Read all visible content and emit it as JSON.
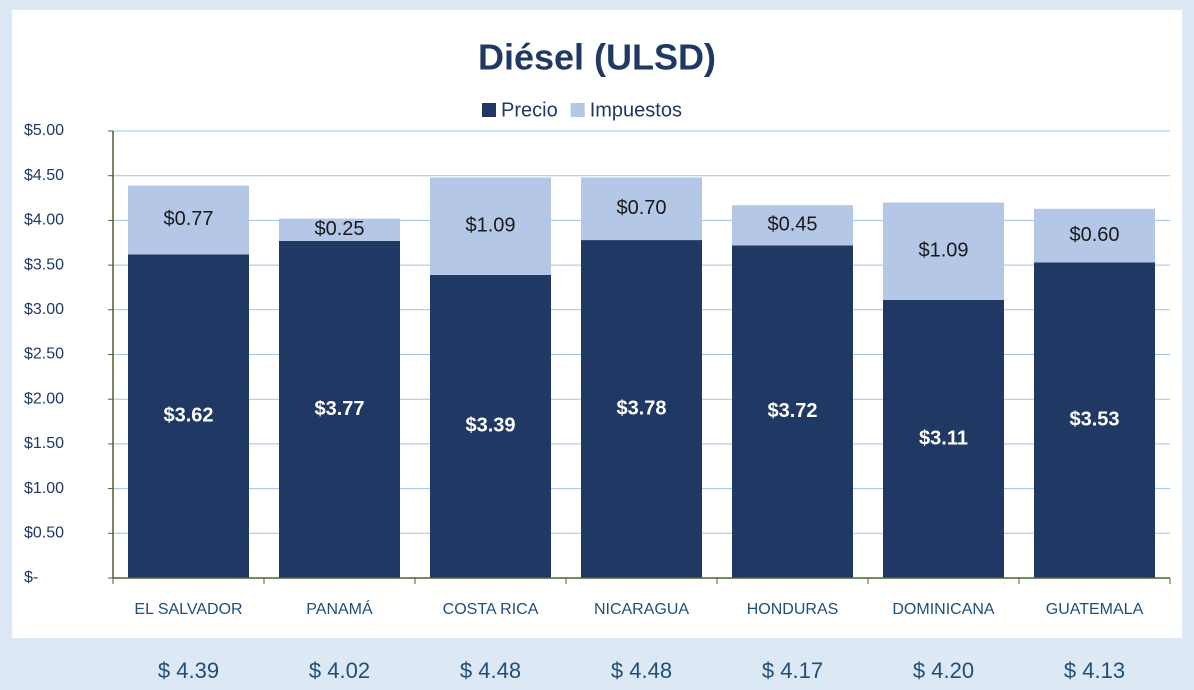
{
  "chart_data": {
    "type": "stacked_bar",
    "title": "Diésel (ULSD)",
    "categories": [
      "EL SALVADOR",
      "PANAMÁ",
      "COSTA RICA",
      "NICARAGUA",
      "HONDURAS",
      "DOMINICANA",
      "GUATEMALA"
    ],
    "series": [
      {
        "name": "Precio",
        "color": "#203864",
        "values": [
          3.62,
          3.77,
          3.39,
          3.78,
          3.72,
          3.11,
          3.53
        ],
        "value_labels": [
          "$3.62",
          "$3.77",
          "$3.39",
          "$3.78",
          "$3.72",
          "$3.11",
          "$3.53"
        ]
      },
      {
        "name": "Impuestos",
        "color": "#b4c7e7",
        "values": [
          0.77,
          0.25,
          1.09,
          0.7,
          0.45,
          1.09,
          0.6
        ],
        "value_labels": [
          "$0.77",
          "$0.25",
          "$1.09",
          "$0.70",
          "$0.45",
          "$1.09",
          "$0.60"
        ]
      }
    ],
    "ylim": [
      0,
      5
    ],
    "yticks": [
      {
        "value": 0,
        "label": "$-"
      },
      {
        "value": 0.5,
        "label": "$0.50"
      },
      {
        "value": 1,
        "label": "$1.00"
      },
      {
        "value": 1.5,
        "label": "$1.50"
      },
      {
        "value": 2,
        "label": "$2.00"
      },
      {
        "value": 2.5,
        "label": "$2.50"
      },
      {
        "value": 3,
        "label": "$3.00"
      },
      {
        "value": 3.5,
        "label": "$3.50"
      },
      {
        "value": 4,
        "label": "$4.00"
      },
      {
        "value": 4.5,
        "label": "$4.50"
      },
      {
        "value": 5,
        "label": "$5.00"
      }
    ],
    "grid": true,
    "legend": "top",
    "total_labels": [
      "$ 4.39",
      "$ 4.02",
      "$ 4.48",
      "$ 4.48",
      "$ 4.17",
      "$ 4.20",
      "$ 4.13"
    ]
  }
}
